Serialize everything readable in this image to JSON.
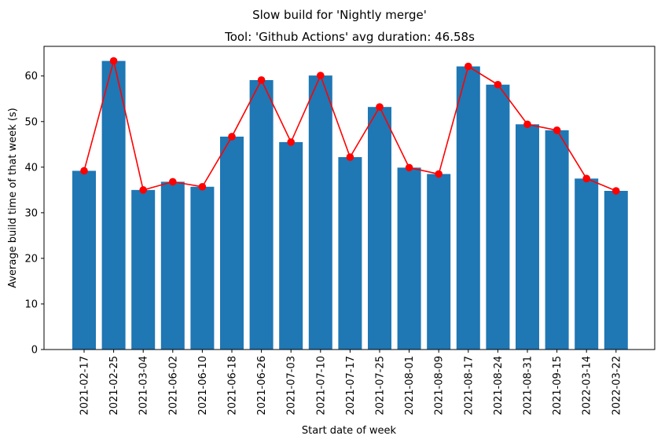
{
  "chart_data": {
    "type": "bar",
    "suptitle": "Slow build for 'Nightly merge'",
    "title": "Tool: 'Github Actions' avg duration: 46.58s",
    "xlabel": "Start date of week",
    "ylabel": "Average build time of that week (s)",
    "ylim": [
      0,
      66.5
    ],
    "yticks": [
      0,
      10,
      20,
      30,
      40,
      50,
      60
    ],
    "grid": false,
    "categories": [
      "2021-02-17",
      "2021-02-25",
      "2021-03-04",
      "2021-06-02",
      "2021-06-10",
      "2021-06-18",
      "2021-06-26",
      "2021-07-03",
      "2021-07-10",
      "2021-07-17",
      "2021-07-25",
      "2021-08-01",
      "2021-08-09",
      "2021-08-17",
      "2021-08-24",
      "2021-08-31",
      "2021-09-15",
      "2022-03-14",
      "2022-03-22"
    ],
    "values": [
      39.2,
      63.3,
      35.0,
      36.8,
      35.7,
      46.7,
      59.1,
      45.5,
      60.1,
      42.2,
      53.2,
      39.9,
      38.5,
      62.1,
      58.1,
      49.4,
      48.1,
      37.5,
      34.8
    ],
    "bar_color": "#1f77b4",
    "line_color": "#ff0000"
  }
}
